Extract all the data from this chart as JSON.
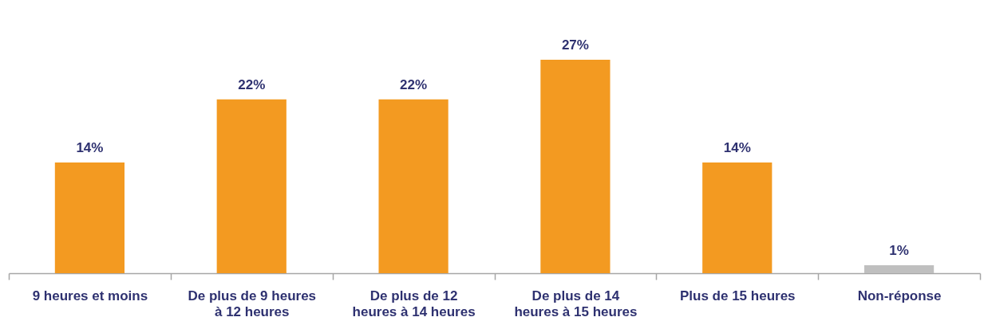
{
  "chart_data": {
    "type": "bar",
    "categories": [
      "9 heures et moins",
      "De plus de 9 heures à 12 heures",
      "De plus de 12 heures à 14 heures",
      "De plus de 14 heures à 15 heures",
      "Plus de 15 heures",
      "Non-réponse"
    ],
    "values": [
      14,
      22,
      22,
      27,
      14,
      1
    ],
    "colors": [
      "#f39a21",
      "#f39a21",
      "#f39a21",
      "#f39a21",
      "#f39a21",
      "#bfbfbf"
    ],
    "value_labels": [
      "14%",
      "22%",
      "22%",
      "27%",
      "14%",
      "1%"
    ],
    "grid": false
  }
}
